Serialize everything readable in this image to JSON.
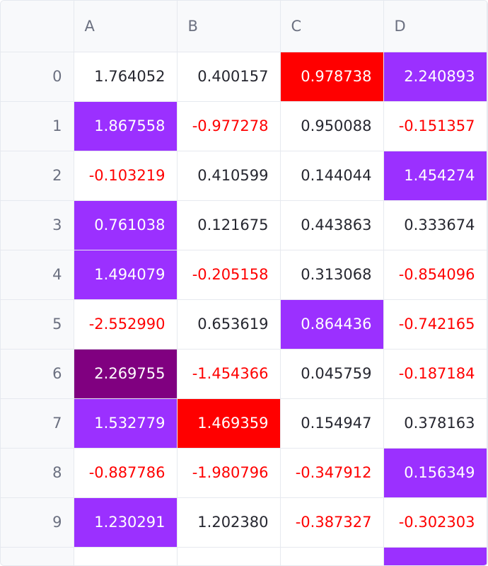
{
  "table": {
    "columns": [
      "",
      "A",
      "B",
      "C",
      "D"
    ],
    "rows": [
      {
        "index": "0",
        "cells": [
          {
            "value": "1.764052",
            "color": "#262730",
            "bg": "#ffffff"
          },
          {
            "value": "0.400157",
            "color": "#262730",
            "bg": "#ffffff"
          },
          {
            "value": "0.978738",
            "color": "#ffffff",
            "bg": "#ff0000"
          },
          {
            "value": "2.240893",
            "color": "#ffffff",
            "bg": "#9b30ff"
          }
        ]
      },
      {
        "index": "1",
        "cells": [
          {
            "value": "1.867558",
            "color": "#ffffff",
            "bg": "#9b30ff"
          },
          {
            "value": "-0.977278",
            "color": "#ff0000",
            "bg": "#ffffff"
          },
          {
            "value": "0.950088",
            "color": "#262730",
            "bg": "#ffffff"
          },
          {
            "value": "-0.151357",
            "color": "#ff0000",
            "bg": "#ffffff"
          }
        ]
      },
      {
        "index": "2",
        "cells": [
          {
            "value": "-0.103219",
            "color": "#ff0000",
            "bg": "#ffffff"
          },
          {
            "value": "0.410599",
            "color": "#262730",
            "bg": "#ffffff"
          },
          {
            "value": "0.144044",
            "color": "#262730",
            "bg": "#ffffff"
          },
          {
            "value": "1.454274",
            "color": "#ffffff",
            "bg": "#9b30ff"
          }
        ]
      },
      {
        "index": "3",
        "cells": [
          {
            "value": "0.761038",
            "color": "#ffffff",
            "bg": "#9b30ff"
          },
          {
            "value": "0.121675",
            "color": "#262730",
            "bg": "#ffffff"
          },
          {
            "value": "0.443863",
            "color": "#262730",
            "bg": "#ffffff"
          },
          {
            "value": "0.333674",
            "color": "#262730",
            "bg": "#ffffff"
          }
        ]
      },
      {
        "index": "4",
        "cells": [
          {
            "value": "1.494079",
            "color": "#ffffff",
            "bg": "#9b30ff"
          },
          {
            "value": "-0.205158",
            "color": "#ff0000",
            "bg": "#ffffff"
          },
          {
            "value": "0.313068",
            "color": "#262730",
            "bg": "#ffffff"
          },
          {
            "value": "-0.854096",
            "color": "#ff0000",
            "bg": "#ffffff"
          }
        ]
      },
      {
        "index": "5",
        "cells": [
          {
            "value": "-2.552990",
            "color": "#ff0000",
            "bg": "#ffffff"
          },
          {
            "value": "0.653619",
            "color": "#262730",
            "bg": "#ffffff"
          },
          {
            "value": "0.864436",
            "color": "#ffffff",
            "bg": "#9b30ff"
          },
          {
            "value": "-0.742165",
            "color": "#ff0000",
            "bg": "#ffffff"
          }
        ]
      },
      {
        "index": "6",
        "cells": [
          {
            "value": "2.269755",
            "color": "#ffffff",
            "bg": "#800080"
          },
          {
            "value": "-1.454366",
            "color": "#ff0000",
            "bg": "#ffffff"
          },
          {
            "value": "0.045759",
            "color": "#262730",
            "bg": "#ffffff"
          },
          {
            "value": "-0.187184",
            "color": "#ff0000",
            "bg": "#ffffff"
          }
        ]
      },
      {
        "index": "7",
        "cells": [
          {
            "value": "1.532779",
            "color": "#ffffff",
            "bg": "#9b30ff"
          },
          {
            "value": "1.469359",
            "color": "#ffffff",
            "bg": "#ff0000"
          },
          {
            "value": "0.154947",
            "color": "#262730",
            "bg": "#ffffff"
          },
          {
            "value": "0.378163",
            "color": "#262730",
            "bg": "#ffffff"
          }
        ]
      },
      {
        "index": "8",
        "cells": [
          {
            "value": "-0.887786",
            "color": "#ff0000",
            "bg": "#ffffff"
          },
          {
            "value": "-1.980796",
            "color": "#ff0000",
            "bg": "#ffffff"
          },
          {
            "value": "-0.347912",
            "color": "#ff0000",
            "bg": "#ffffff"
          },
          {
            "value": "0.156349",
            "color": "#ffffff",
            "bg": "#9b30ff"
          }
        ]
      },
      {
        "index": "9",
        "cells": [
          {
            "value": "1.230291",
            "color": "#ffffff",
            "bg": "#9b30ff"
          },
          {
            "value": "1.202380",
            "color": "#262730",
            "bg": "#ffffff"
          },
          {
            "value": "-0.387327",
            "color": "#ff0000",
            "bg": "#ffffff"
          },
          {
            "value": "-0.302303",
            "color": "#ff0000",
            "bg": "#ffffff"
          }
        ]
      },
      {
        "index": "",
        "cells": [
          {
            "value": "",
            "color": "#262730",
            "bg": "#ffffff"
          },
          {
            "value": "",
            "color": "#262730",
            "bg": "#ffffff"
          },
          {
            "value": "",
            "color": "#262730",
            "bg": "#ffffff"
          },
          {
            "value": "",
            "color": "#262730",
            "bg": "#9b30ff"
          }
        ]
      }
    ]
  }
}
